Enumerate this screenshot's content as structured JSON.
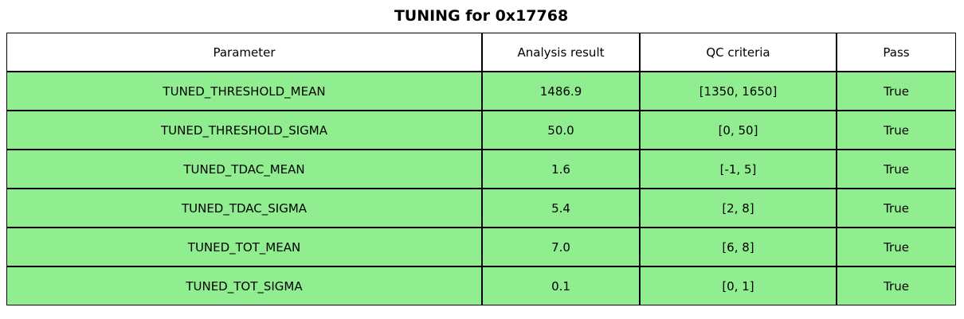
{
  "title": "TUNING for 0x17768",
  "colors": {
    "row_bg": "#90EE90",
    "header_bg": "#FFFFFF",
    "border": "#000000",
    "text": "#000000"
  },
  "chart_data": {
    "type": "table",
    "title": "TUNING for 0x17768",
    "columns": [
      "Parameter",
      "Analysis result",
      "QC criteria",
      "Pass"
    ],
    "rows": [
      [
        "TUNED_THRESHOLD_MEAN",
        "1486.9",
        "[1350, 1650]",
        "True"
      ],
      [
        "TUNED_THRESHOLD_SIGMA",
        "50.0",
        "[0, 50]",
        "True"
      ],
      [
        "TUNED_TDAC_MEAN",
        "1.6",
        "[-1, 5]",
        "True"
      ],
      [
        "TUNED_TDAC_SIGMA",
        "5.4",
        "[2, 8]",
        "True"
      ],
      [
        "TUNED_TOT_MEAN",
        "7.0",
        "[6, 8]",
        "True"
      ],
      [
        "TUNED_TOT_SIGMA",
        "0.1",
        "[0, 1]",
        "True"
      ]
    ],
    "layout": {
      "header_background": "#FFFFFF",
      "row_background": "#90EE90",
      "all_cells_centered": true
    }
  }
}
